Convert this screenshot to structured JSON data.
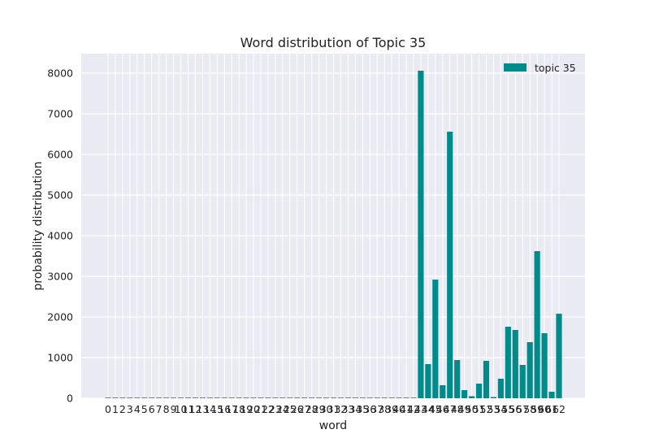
{
  "chart_data": {
    "type": "bar",
    "title": "Word distribution of Topic 35",
    "xlabel": "word",
    "ylabel": "probability distribution",
    "categories": [
      "0",
      "1",
      "2",
      "3",
      "4",
      "5",
      "6",
      "7",
      "8",
      "9",
      "10",
      "11",
      "12",
      "13",
      "14",
      "15",
      "16",
      "17",
      "18",
      "19",
      "20",
      "21",
      "22",
      "23",
      "24",
      "25",
      "26",
      "27",
      "28",
      "29",
      "30",
      "31",
      "32",
      "33",
      "34",
      "35",
      "36",
      "37",
      "38",
      "39",
      "40",
      "41",
      "42",
      "43",
      "44",
      "45",
      "46",
      "47",
      "48",
      "49",
      "50",
      "51",
      "52",
      "53",
      "54",
      "55",
      "56",
      "57",
      "58",
      "59",
      "60",
      "61",
      "62"
    ],
    "series": [
      {
        "name": "topic 35",
        "color": "#008b8b",
        "values": [
          0,
          0,
          0,
          0,
          0,
          0,
          0,
          0,
          0,
          0,
          0,
          0,
          0,
          0,
          0,
          0,
          0,
          0,
          0,
          0,
          0,
          0,
          0,
          0,
          0,
          0,
          0,
          0,
          0,
          0,
          0,
          0,
          0,
          0,
          0,
          0,
          0,
          0,
          0,
          0,
          0,
          0,
          0,
          8060,
          840,
          2920,
          320,
          6560,
          940,
          200,
          50,
          360,
          920,
          30,
          480,
          1760,
          1680,
          820,
          1380,
          3620,
          1600,
          160,
          2080
        ]
      }
    ],
    "ylim": [
      0,
      8500
    ],
    "yticks": [
      0,
      1000,
      2000,
      3000,
      4000,
      5000,
      6000,
      7000,
      8000
    ],
    "grid": true,
    "legend_position": "top-right",
    "background_color": "#eaeaf2",
    "grid_color": "#ffffff"
  }
}
